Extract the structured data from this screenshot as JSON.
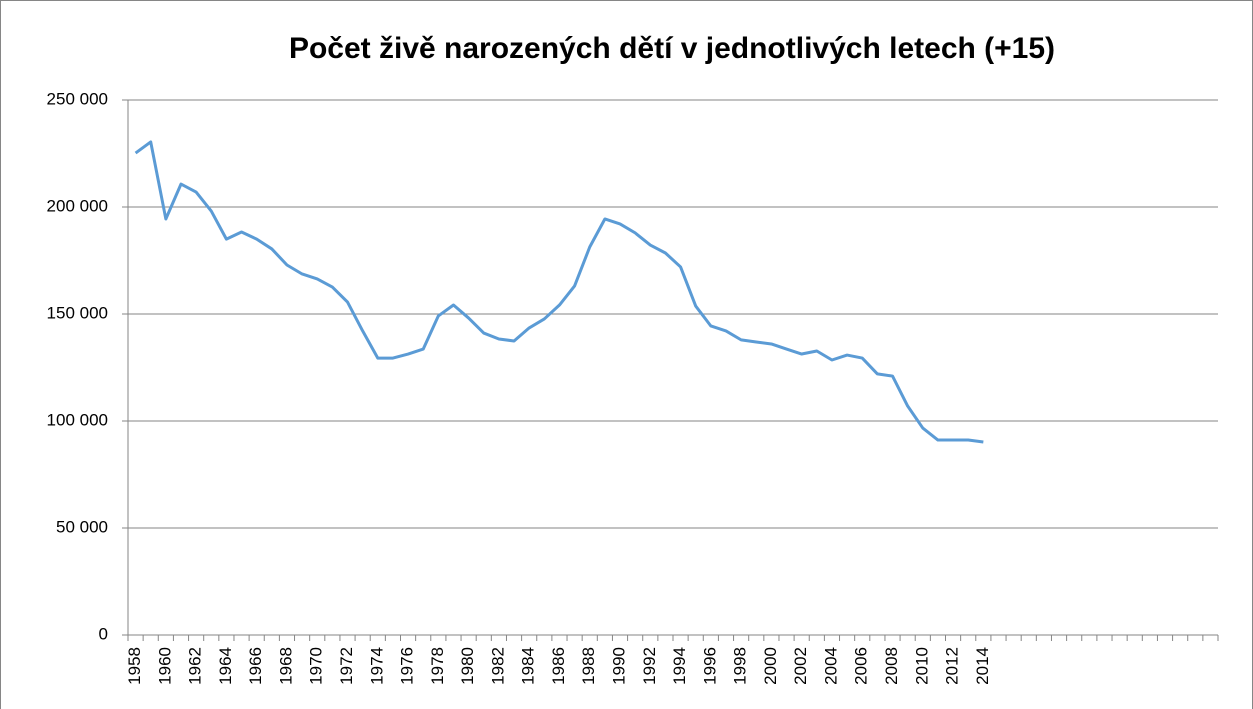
{
  "chart_data": {
    "type": "line",
    "title": "Počet živě narozených dětí v jednotlivých letech (+15)",
    "categories": [
      "1958",
      null,
      "1960",
      null,
      "1962",
      null,
      "1964",
      null,
      "1966",
      null,
      "1968",
      null,
      "1970",
      null,
      "1972",
      null,
      "1974",
      null,
      "1976",
      null,
      "1978",
      null,
      "1980",
      null,
      "1982",
      null,
      "1984",
      null,
      "1986",
      null,
      "1988",
      null,
      "1990",
      null,
      "1992",
      null,
      "1994",
      null,
      "1996",
      null,
      "1998",
      null,
      "2000",
      null,
      "2002",
      null,
      "2004",
      null,
      "2006",
      null,
      "2008",
      null,
      "2010",
      null,
      "2012",
      null,
      "2014",
      null,
      null,
      null,
      null,
      null,
      null,
      null,
      null,
      null,
      null,
      null,
      null,
      null,
      null,
      null
    ],
    "series": [
      {
        "name": "Počet živě narozených dětí",
        "color": "#5b9bd5",
        "values": [
          225200,
          230400,
          194400,
          210700,
          207000,
          198100,
          185000,
          188300,
          185000,
          180400,
          172900,
          168700,
          166400,
          162600,
          155600,
          142100,
          129400,
          129400,
          131300,
          133600,
          149100,
          154200,
          148100,
          141100,
          138300,
          137400,
          143500,
          147700,
          154200,
          163100,
          181300,
          194400,
          192100,
          187900,
          182200,
          178500,
          172000,
          153700,
          144400,
          142100,
          137900,
          136900,
          136000,
          133600,
          131300,
          132700,
          128500,
          130800,
          129400,
          122000,
          121000,
          107000,
          96700,
          91100,
          91100,
          91100,
          90200,
          null,
          null,
          null,
          null,
          null,
          null,
          null,
          null,
          null,
          null,
          null,
          null,
          null,
          null,
          null
        ]
      }
    ],
    "ylim": [
      0,
      250000
    ],
    "yticks": [
      0,
      {
        "value": 50000,
        "label": "50 000"
      },
      {
        "value": 100000,
        "label": "100 000"
      },
      {
        "value": 150000,
        "label": "150 000"
      },
      {
        "value": 200000,
        "label": "200 000"
      },
      {
        "value": 250000,
        "label": "250 000"
      }
    ],
    "grid": true
  }
}
